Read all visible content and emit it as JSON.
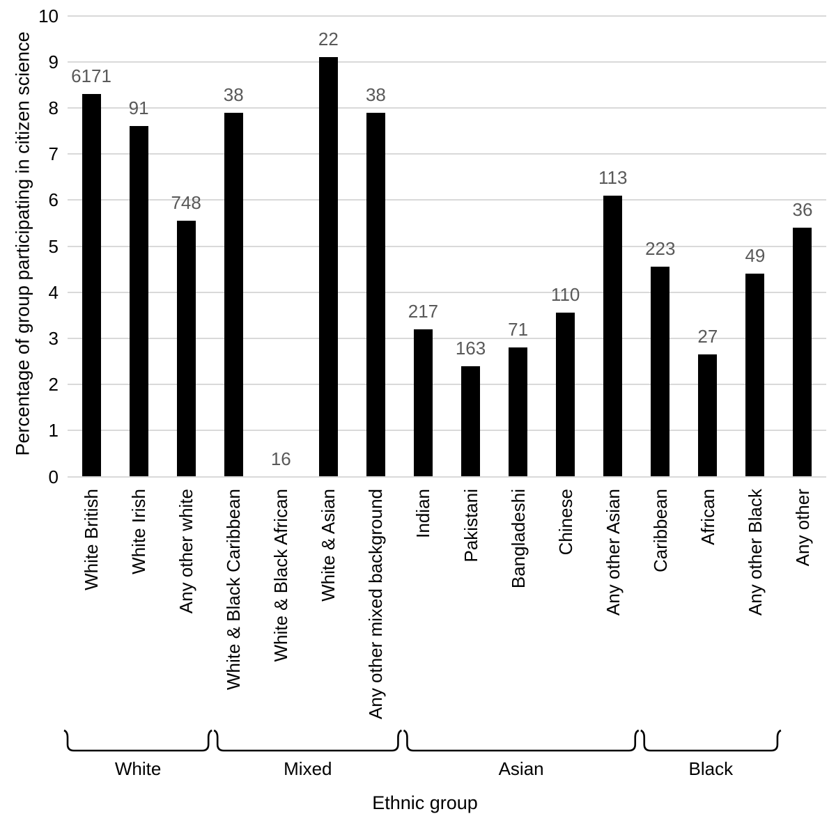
{
  "chart_data": {
    "type": "bar",
    "title": "",
    "ylabel": "Percentage of group participating in citizen science",
    "xlabel": "Ethnic group",
    "ylim": [
      0,
      10
    ],
    "yticks": [
      0,
      1,
      2,
      3,
      4,
      5,
      6,
      7,
      8,
      9,
      10
    ],
    "grid": true,
    "legend": "none",
    "bar_color": "#000000",
    "gridline_color": "#d9d9d9",
    "data_label_color": "#595959",
    "axis_text_color": "#000000",
    "categories": [
      "White British",
      "White Irish",
      "Any other white",
      "White & Black Caribbean",
      "White & Black African",
      "White & Asian",
      "Any other mixed background",
      "Indian",
      "Pakistani",
      "Bangladeshi",
      "Chinese",
      "Any other Asian",
      "Caribbean",
      "African",
      "Any other Black",
      "Any other"
    ],
    "values": [
      8.3,
      7.6,
      5.55,
      7.9,
      0,
      9.1,
      7.9,
      3.2,
      2.4,
      2.8,
      3.55,
      6.1,
      4.55,
      2.65,
      4.4,
      5.4
    ],
    "bar_count_labels": [
      "6171",
      "91",
      "748",
      "38",
      "16",
      "22",
      "38",
      "217",
      "163",
      "71",
      "110",
      "113",
      "223",
      "27",
      "49",
      "36"
    ],
    "groups": [
      {
        "label": "White",
        "from": 0,
        "to": 2
      },
      {
        "label": "Mixed",
        "from": 3,
        "to": 6
      },
      {
        "label": "Asian",
        "from": 7,
        "to": 11
      },
      {
        "label": "Black",
        "from": 12,
        "to": 14
      }
    ]
  }
}
